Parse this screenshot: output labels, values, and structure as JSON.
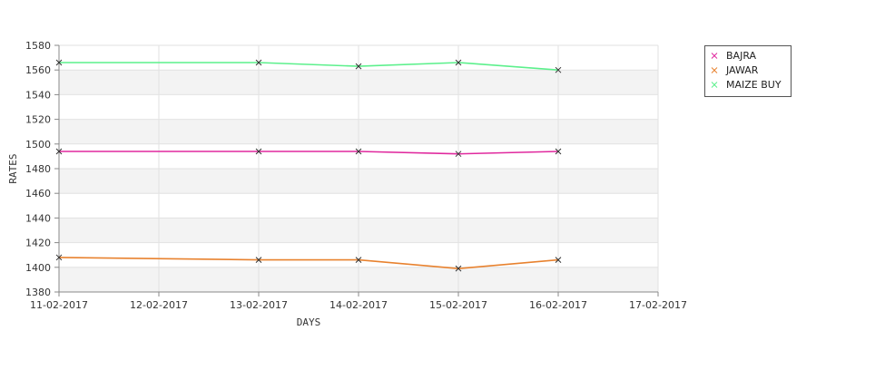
{
  "chart_data": {
    "type": "line",
    "title": "",
    "xlabel": "DAYS",
    "ylabel": "RATES",
    "x_ticks": [
      "11-02-2017",
      "12-02-2017",
      "13-02-2017",
      "14-02-2017",
      "15-02-2017",
      "16-02-2017",
      "17-02-2017"
    ],
    "ylim": [
      1380,
      1580
    ],
    "y_ticks": [
      1380,
      1400,
      1420,
      1440,
      1460,
      1480,
      1500,
      1520,
      1540,
      1560,
      1580
    ],
    "grid": true,
    "legend_position": "top-right",
    "series": [
      {
        "name": "BAJRA",
        "color": "#e0299e",
        "points": [
          {
            "x": "11-02-2017",
            "y": 1494
          },
          {
            "x": "13-02-2017",
            "y": 1494
          },
          {
            "x": "14-02-2017",
            "y": 1494
          },
          {
            "x": "15-02-2017",
            "y": 1492
          },
          {
            "x": "16-02-2017",
            "y": 1494
          }
        ]
      },
      {
        "name": "JAWAR",
        "color": "#e8822f",
        "points": [
          {
            "x": "11-02-2017",
            "y": 1408
          },
          {
            "x": "13-02-2017",
            "y": 1406
          },
          {
            "x": "14-02-2017",
            "y": 1406
          },
          {
            "x": "15-02-2017",
            "y": 1399
          },
          {
            "x": "16-02-2017",
            "y": 1406
          }
        ]
      },
      {
        "name": "MAIZE BUY",
        "color": "#5cf08c",
        "points": [
          {
            "x": "11-02-2017",
            "y": 1566
          },
          {
            "x": "13-02-2017",
            "y": 1566
          },
          {
            "x": "14-02-2017",
            "y": 1563
          },
          {
            "x": "15-02-2017",
            "y": 1566
          },
          {
            "x": "16-02-2017",
            "y": 1560
          }
        ]
      }
    ]
  }
}
